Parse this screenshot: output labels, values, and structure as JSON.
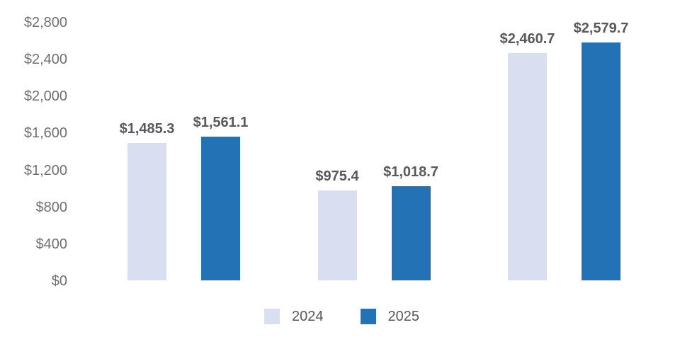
{
  "chart_data": {
    "type": "bar",
    "title": "",
    "xlabel": "",
    "ylabel": "",
    "categories": [
      "",
      "",
      ""
    ],
    "series": [
      {
        "name": "2024",
        "color": "#D9DEF0",
        "values": [
          1485.3,
          975.4,
          2460.7
        ],
        "labels": [
          "$1,485.3",
          "$975.4",
          "$2,460.7"
        ]
      },
      {
        "name": "2025",
        "color": "#2272B5",
        "values": [
          1561.1,
          1018.7,
          2579.7
        ],
        "labels": [
          "$1,561.1",
          "$1,018.7",
          "$2,579.7"
        ]
      }
    ],
    "y_axis": {
      "range": [
        0,
        2800
      ],
      "tick_step": 400,
      "grid": false,
      "axis_line": false,
      "ticks": [
        {
          "value": 0,
          "label": "$0"
        },
        {
          "value": 400,
          "label": "$400"
        },
        {
          "value": 800,
          "label": "$800"
        },
        {
          "value": 1200,
          "label": "$1,200"
        },
        {
          "value": 1600,
          "label": "$1,600"
        },
        {
          "value": 2000,
          "label": "$2,000"
        },
        {
          "value": 2400,
          "label": "$2,400"
        },
        {
          "value": 2800,
          "label": "$2,800"
        }
      ]
    },
    "legend": {
      "position": "bottom",
      "entries": [
        {
          "label": "2024",
          "color": "#D9DEF0"
        },
        {
          "label": "2025",
          "color": "#2272B5"
        }
      ]
    },
    "colors": {
      "value_label": "#58595B",
      "axis_label": "#6F7073",
      "legend_label": "#595959",
      "background": "#ffffff"
    }
  }
}
